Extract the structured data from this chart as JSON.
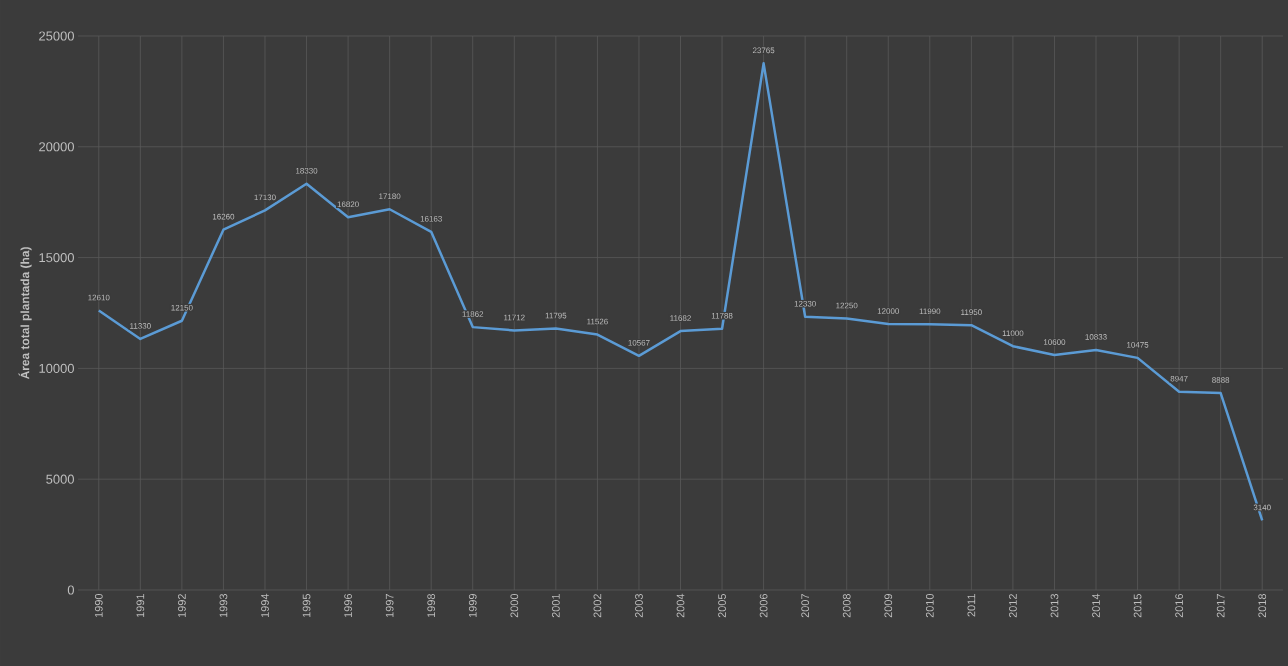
{
  "chart_data": {
    "type": "line",
    "ylabel": "Área total plantada (ha)",
    "categories": [
      "1990",
      "1991",
      "1992",
      "1993",
      "1994",
      "1995",
      "1996",
      "1997",
      "1998",
      "1999",
      "2000",
      "2001",
      "2002",
      "2003",
      "2004",
      "2005",
      "2006",
      "2007",
      "2008",
      "2009",
      "2010",
      "2011",
      "2012",
      "2013",
      "2014",
      "2015",
      "2016",
      "2017",
      "2018"
    ],
    "values": [
      12610,
      11330,
      12150,
      16260,
      17130,
      18330,
      16820,
      17180,
      16163,
      11862,
      11712,
      11795,
      11526,
      10567,
      11682,
      11788,
      23765,
      12330,
      12250,
      12000,
      11990,
      11950,
      11000,
      10600,
      10833,
      10475,
      8947,
      8888,
      3140
    ],
    "color": "#5b9bd5",
    "ylim": [
      0,
      25000
    ],
    "yticks": [
      0,
      5000,
      10000,
      15000,
      20000,
      25000
    ],
    "grid": true,
    "data_labels": true
  }
}
